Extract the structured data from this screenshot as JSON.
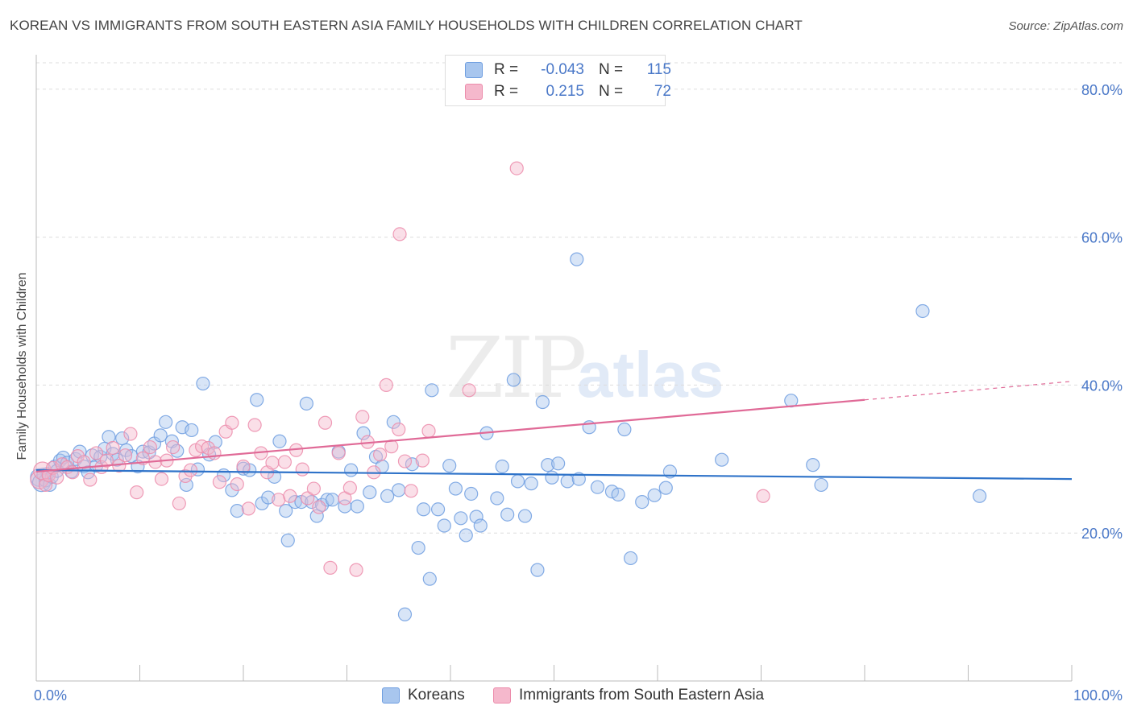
{
  "title": "KOREAN VS IMMIGRANTS FROM SOUTH EASTERN ASIA FAMILY HOUSEHOLDS WITH CHILDREN CORRELATION CHART",
  "source": "Source: ZipAtlas.com",
  "watermark": {
    "zip": "ZIP",
    "atlas": "atlas"
  },
  "legend": {
    "korean": {
      "r_label": "R =",
      "r_value": "-0.043",
      "n_label": "N =",
      "n_value": "115"
    },
    "immigrants": {
      "r_label": "R =",
      "r_value": "0.215",
      "n_label": "N =",
      "n_value": "72"
    }
  },
  "bottom_legend": {
    "korean": "Koreans",
    "immigrants": "Immigrants from South Eastern Asia"
  },
  "colors": {
    "korean_fill": "#a8c6ee",
    "korean_stroke": "#6f9ee0",
    "korean_line": "#2f73c9",
    "immigrant_fill": "#f5b8cc",
    "immigrant_stroke": "#ec8cab",
    "immigrant_line": "#e06a97",
    "tick_text": "#4a78c8",
    "grid": "#dddddd"
  },
  "chart_data": {
    "type": "scatter",
    "title": "KOREAN VS IMMIGRANTS FROM SOUTH EASTERN ASIA FAMILY HOUSEHOLDS WITH CHILDREN CORRELATION CHART",
    "xlabel": "",
    "ylabel": "Family Households with Children",
    "xlim": [
      0,
      100
    ],
    "ylim": [
      0,
      84
    ],
    "x_tick_labels": [
      "0.0%",
      "100.0%"
    ],
    "y_ticks": [
      20,
      40,
      60,
      80
    ],
    "y_tick_labels": [
      "20.0%",
      "40.0%",
      "60.0%",
      "80.0%"
    ],
    "grid": true,
    "legend_placement": "top-center",
    "series": [
      {
        "name": "Koreans",
        "trend": {
          "x0": 0,
          "y0": 28.5,
          "x1": 100,
          "y1": 27.3
        },
        "points": [
          [
            0.3,
            27.5
          ],
          [
            0.5,
            26.8
          ],
          [
            0.7,
            27.9
          ],
          [
            0.9,
            27.1
          ],
          [
            1.1,
            28.0
          ],
          [
            1.3,
            26.5
          ],
          [
            1.5,
            27.6
          ],
          [
            1.8,
            29.0
          ],
          [
            2.0,
            28.4
          ],
          [
            2.3,
            29.8
          ],
          [
            2.6,
            30.2
          ],
          [
            3.0,
            29.5
          ],
          [
            3.4,
            28.3
          ],
          [
            3.8,
            30.0
          ],
          [
            4.2,
            31.0
          ],
          [
            4.6,
            29.0
          ],
          [
            5.0,
            28.2
          ],
          [
            5.4,
            30.5
          ],
          [
            5.8,
            29.1
          ],
          [
            6.2,
            30.3
          ],
          [
            6.6,
            31.4
          ],
          [
            7.0,
            33.0
          ],
          [
            7.4,
            30.7
          ],
          [
            7.8,
            29.9
          ],
          [
            8.3,
            32.8
          ],
          [
            8.7,
            31.2
          ],
          [
            9.2,
            30.4
          ],
          [
            9.8,
            29.0
          ],
          [
            10.3,
            31.0
          ],
          [
            10.9,
            30.9
          ],
          [
            11.4,
            32.1
          ],
          [
            12.0,
            33.2
          ],
          [
            12.5,
            35.0
          ],
          [
            13.1,
            32.4
          ],
          [
            13.6,
            31.1
          ],
          [
            14.1,
            34.3
          ],
          [
            14.5,
            26.5
          ],
          [
            15.0,
            33.9
          ],
          [
            15.6,
            28.6
          ],
          [
            16.1,
            40.2
          ],
          [
            16.7,
            30.6
          ],
          [
            17.3,
            32.3
          ],
          [
            18.1,
            27.8
          ],
          [
            18.9,
            25.8
          ],
          [
            19.4,
            23.0
          ],
          [
            20.0,
            28.7
          ],
          [
            20.6,
            28.5
          ],
          [
            21.3,
            38.0
          ],
          [
            21.8,
            24.0
          ],
          [
            22.4,
            24.8
          ],
          [
            23.0,
            27.6
          ],
          [
            23.5,
            32.4
          ],
          [
            24.1,
            23.0
          ],
          [
            24.3,
            19.0
          ],
          [
            25.0,
            24.2
          ],
          [
            25.6,
            24.2
          ],
          [
            26.1,
            37.5
          ],
          [
            26.6,
            24.2
          ],
          [
            27.1,
            22.3
          ],
          [
            27.6,
            23.8
          ],
          [
            28.1,
            24.5
          ],
          [
            28.6,
            24.5
          ],
          [
            29.2,
            31.0
          ],
          [
            29.8,
            23.6
          ],
          [
            30.4,
            28.5
          ],
          [
            31.0,
            23.6
          ],
          [
            31.6,
            33.5
          ],
          [
            32.2,
            25.5
          ],
          [
            32.8,
            30.3
          ],
          [
            33.4,
            29.0
          ],
          [
            33.9,
            25.0
          ],
          [
            34.5,
            35.0
          ],
          [
            35.0,
            25.8
          ],
          [
            35.6,
            9.0
          ],
          [
            36.3,
            29.3
          ],
          [
            36.9,
            18.0
          ],
          [
            37.4,
            23.2
          ],
          [
            38.0,
            13.8
          ],
          [
            38.2,
            39.3
          ],
          [
            38.8,
            23.2
          ],
          [
            39.4,
            21.0
          ],
          [
            39.9,
            29.1
          ],
          [
            40.5,
            26.0
          ],
          [
            41.0,
            22.0
          ],
          [
            41.5,
            19.7
          ],
          [
            42.0,
            25.3
          ],
          [
            42.5,
            22.2
          ],
          [
            42.9,
            21.0
          ],
          [
            43.5,
            33.5
          ],
          [
            44.5,
            24.7
          ],
          [
            45.0,
            29.0
          ],
          [
            45.5,
            22.5
          ],
          [
            46.1,
            40.7
          ],
          [
            46.5,
            27.0
          ],
          [
            47.2,
            22.3
          ],
          [
            47.8,
            26.7
          ],
          [
            48.4,
            15.0
          ],
          [
            48.9,
            37.7
          ],
          [
            49.4,
            29.2
          ],
          [
            49.8,
            27.5
          ],
          [
            50.4,
            29.4
          ],
          [
            51.3,
            27.0
          ],
          [
            52.2,
            57.0
          ],
          [
            52.4,
            27.3
          ],
          [
            53.4,
            34.3
          ],
          [
            54.2,
            26.2
          ],
          [
            55.6,
            25.6
          ],
          [
            56.2,
            25.2
          ],
          [
            56.8,
            34.0
          ],
          [
            57.4,
            16.6
          ],
          [
            58.5,
            24.2
          ],
          [
            59.7,
            25.1
          ],
          [
            60.8,
            26.1
          ],
          [
            61.2,
            28.3
          ],
          [
            66.2,
            29.9
          ],
          [
            72.9,
            37.9
          ],
          [
            75.0,
            29.2
          ],
          [
            75.8,
            26.5
          ],
          [
            85.6,
            50.0
          ],
          [
            91.1,
            25.0
          ]
        ]
      },
      {
        "name": "Immigrants from South Eastern Asia",
        "trend": {
          "x0": 0,
          "y0": 28.3,
          "x1": 80,
          "y1": 38.0,
          "x_dash_end": 100,
          "y_dash_end": 40.5
        },
        "points": [
          [
            0.3,
            27.2
          ],
          [
            0.6,
            28.4
          ],
          [
            0.9,
            26.5
          ],
          [
            1.2,
            27.8
          ],
          [
            1.6,
            28.8
          ],
          [
            2.0,
            27.5
          ],
          [
            2.5,
            29.3
          ],
          [
            3.0,
            28.9
          ],
          [
            3.5,
            28.2
          ],
          [
            4.0,
            30.4
          ],
          [
            4.6,
            29.6
          ],
          [
            5.2,
            27.2
          ],
          [
            5.8,
            30.8
          ],
          [
            6.3,
            28.9
          ],
          [
            6.8,
            29.8
          ],
          [
            7.4,
            31.5
          ],
          [
            8.0,
            29.1
          ],
          [
            8.6,
            30.5
          ],
          [
            9.1,
            33.4
          ],
          [
            9.7,
            25.5
          ],
          [
            10.3,
            30.1
          ],
          [
            11.0,
            31.6
          ],
          [
            11.5,
            29.6
          ],
          [
            12.1,
            27.3
          ],
          [
            12.6,
            29.8
          ],
          [
            13.2,
            31.6
          ],
          [
            13.8,
            24.0
          ],
          [
            14.4,
            27.7
          ],
          [
            14.9,
            28.5
          ],
          [
            15.4,
            31.2
          ],
          [
            16.0,
            31.7
          ],
          [
            16.6,
            31.5
          ],
          [
            17.2,
            30.8
          ],
          [
            17.7,
            26.9
          ],
          [
            18.3,
            33.7
          ],
          [
            18.9,
            34.9
          ],
          [
            19.4,
            26.6
          ],
          [
            20.0,
            29.0
          ],
          [
            20.5,
            23.3
          ],
          [
            21.1,
            34.6
          ],
          [
            21.7,
            30.8
          ],
          [
            22.3,
            28.2
          ],
          [
            22.8,
            29.5
          ],
          [
            23.4,
            24.5
          ],
          [
            24.0,
            29.6
          ],
          [
            24.5,
            25.0
          ],
          [
            25.1,
            31.2
          ],
          [
            25.7,
            28.6
          ],
          [
            26.2,
            24.7
          ],
          [
            26.8,
            26.0
          ],
          [
            27.3,
            23.5
          ],
          [
            27.9,
            34.9
          ],
          [
            28.4,
            15.3
          ],
          [
            29.2,
            30.8
          ],
          [
            29.8,
            24.7
          ],
          [
            30.3,
            26.1
          ],
          [
            30.9,
            15.0
          ],
          [
            31.5,
            35.7
          ],
          [
            32.0,
            32.3
          ],
          [
            32.6,
            28.2
          ],
          [
            33.2,
            30.6
          ],
          [
            33.8,
            40.0
          ],
          [
            34.3,
            31.7
          ],
          [
            35.0,
            34.0
          ],
          [
            35.1,
            60.4
          ],
          [
            35.6,
            29.7
          ],
          [
            36.2,
            25.7
          ],
          [
            37.3,
            29.8
          ],
          [
            37.9,
            33.8
          ],
          [
            41.8,
            39.3
          ],
          [
            46.4,
            69.3
          ],
          [
            70.2,
            25.0
          ]
        ]
      }
    ]
  }
}
